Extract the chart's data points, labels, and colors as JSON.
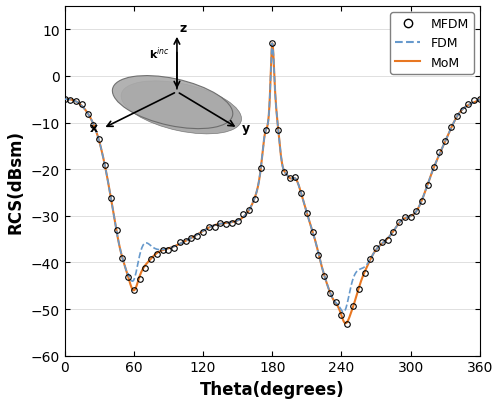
{
  "title": "",
  "xlabel": "Theta(degrees)",
  "ylabel": "RCS(dBsm)",
  "xlim": [
    0,
    360
  ],
  "ylim": [
    -60,
    15
  ],
  "xticks": [
    0,
    60,
    120,
    180,
    240,
    300,
    360
  ],
  "yticks": [
    -60,
    -50,
    -40,
    -30,
    -20,
    -10,
    0,
    10
  ],
  "mom_color": "#E87722",
  "fdm_color": "#6699CC",
  "mfdm_color": "#000000",
  "legend_labels": [
    "MFDM",
    "FDM",
    "MoM"
  ],
  "figsize": [
    5.0,
    4.06
  ],
  "dpi": 100
}
